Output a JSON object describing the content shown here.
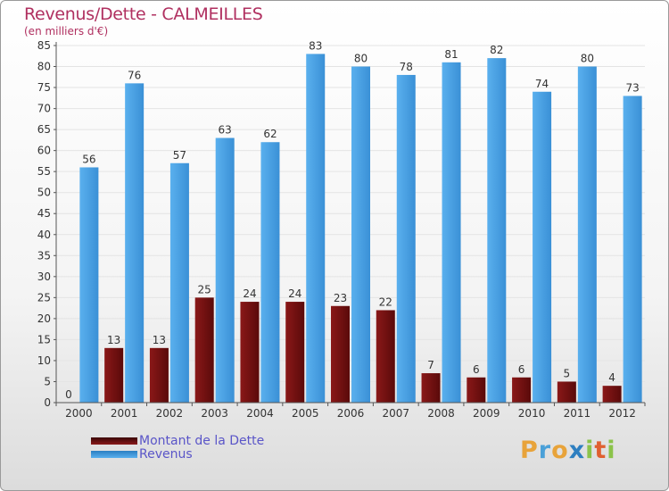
{
  "title": "Revenus/Dette - CALMEILLES",
  "subtitle": "(en milliers d'€)",
  "logo": {
    "letters": [
      "P",
      "r",
      "o",
      "x",
      "i",
      "t",
      "i"
    ],
    "colors": [
      "#e8a33a",
      "#4aa0d8",
      "#e8a33a",
      "#2e7fc0",
      "#8bc34a",
      "#e06030",
      "#8bc34a"
    ]
  },
  "colors": {
    "dette": "#7a1010",
    "revenus": "#4aa3e6"
  },
  "chart_data": {
    "type": "bar",
    "title": "Revenus/Dette - CALMEILLES",
    "subtitle": "(en milliers d'€)",
    "categories": [
      "2000",
      "2001",
      "2002",
      "2003",
      "2004",
      "2005",
      "2006",
      "2007",
      "2008",
      "2009",
      "2010",
      "2011",
      "2012"
    ],
    "series": [
      {
        "name": "Montant de la Dette",
        "values": [
          0,
          13,
          13,
          25,
          24,
          24,
          23,
          22,
          7,
          6,
          6,
          5,
          4
        ]
      },
      {
        "name": "Revenus",
        "values": [
          56,
          76,
          57,
          63,
          62,
          83,
          80,
          78,
          81,
          82,
          74,
          80,
          73
        ]
      }
    ],
    "ylim": [
      0,
      85
    ],
    "yticks": [
      0,
      5,
      10,
      15,
      20,
      25,
      30,
      35,
      40,
      45,
      50,
      55,
      60,
      65,
      70,
      75,
      80,
      85
    ],
    "grid": true,
    "legend": "bottom-left"
  }
}
